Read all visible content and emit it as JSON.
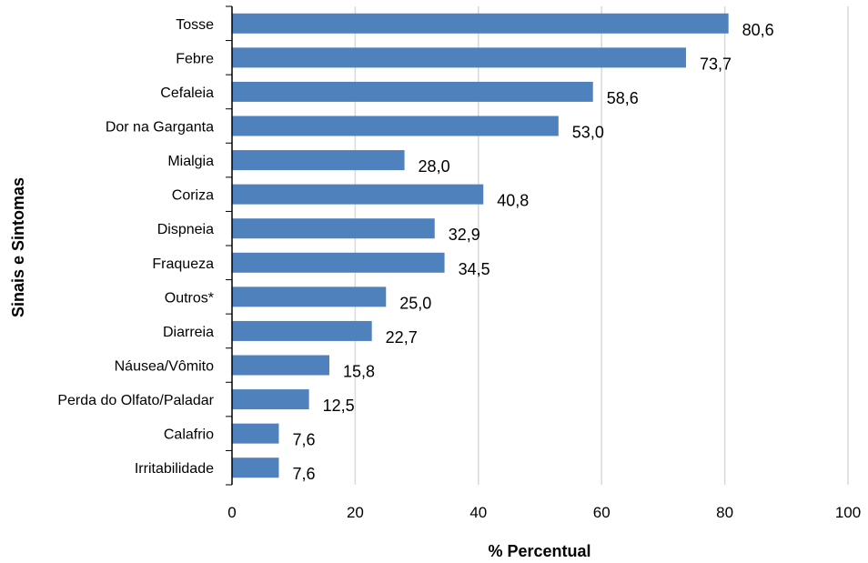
{
  "chart_data": {
    "type": "bar",
    "orientation": "horizontal",
    "categories": [
      "Tosse",
      "Febre",
      "Cefaleia",
      "Dor na Garganta",
      "Mialgia",
      "Coriza",
      "Dispneia",
      "Fraqueza",
      "Outros*",
      "Diarreia",
      "Náusea/Vômito",
      "Perda do Olfato/Paladar",
      "Calafrio",
      "Irritabilidade"
    ],
    "values": [
      80.6,
      73.7,
      58.6,
      53.0,
      28.0,
      40.8,
      32.9,
      34.5,
      25.0,
      22.7,
      15.8,
      12.5,
      7.6,
      7.6
    ],
    "value_labels": [
      "80,6",
      "73,7",
      "58,6",
      "53,0",
      "28,0",
      "40,8",
      "32,9",
      "34,5",
      "25,0",
      "22,7",
      "15,8",
      "12,5",
      "7,6",
      "7,6"
    ],
    "xlabel": "% Percentual",
    "ylabel": "Sinais e Sintomas",
    "xlim": [
      0,
      100
    ],
    "xticks": [
      0,
      20,
      40,
      60,
      80,
      100
    ],
    "grid": "vertical",
    "legend": "none",
    "colors": {
      "bar": "#4F81BD",
      "grid": "#D9D9D9",
      "axis": "#000000"
    }
  }
}
